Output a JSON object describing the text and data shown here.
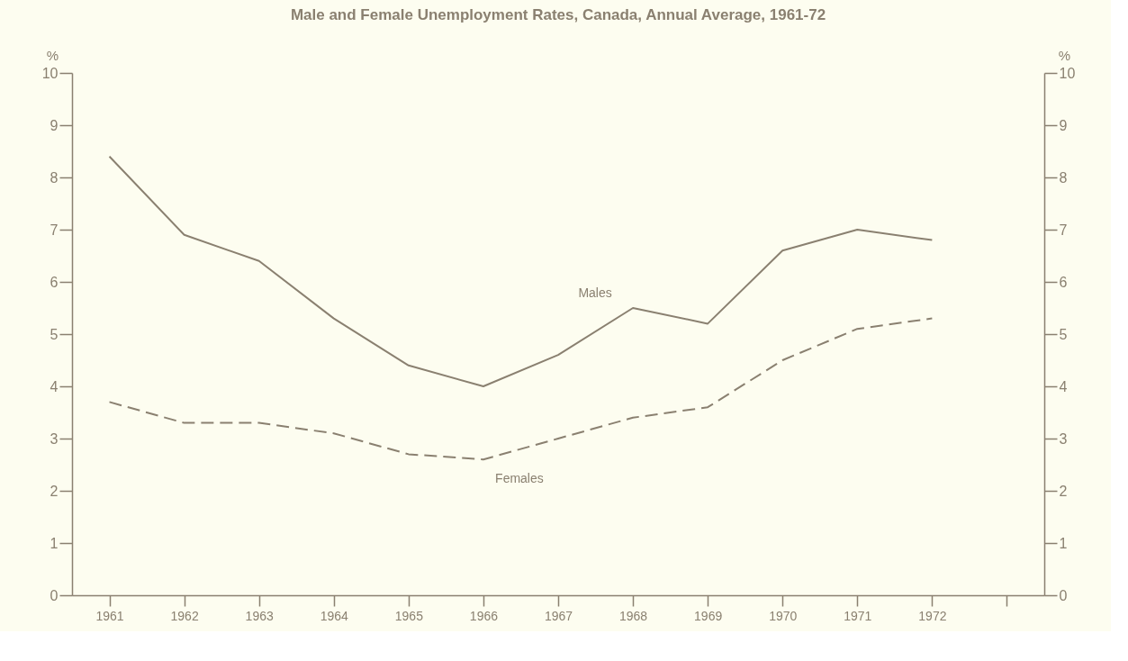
{
  "chart_data": {
    "type": "line",
    "title": "Male and Female Unemployment Rates, Canada, Annual Average, 1961-72",
    "x": [
      1961,
      1962,
      1963,
      1964,
      1965,
      1966,
      1967,
      1968,
      1969,
      1970,
      1971,
      1972
    ],
    "series": [
      {
        "name": "Males",
        "color": "#8a8070",
        "line_style": "solid",
        "values": [
          8.4,
          6.9,
          6.4,
          5.3,
          4.4,
          4.0,
          4.6,
          5.5,
          5.2,
          6.6,
          7.0,
          6.8
        ]
      },
      {
        "name": "Females",
        "color": "#8a8070",
        "line_style": "dashed",
        "values": [
          3.7,
          3.3,
          3.3,
          3.1,
          2.7,
          2.6,
          3.0,
          3.4,
          3.6,
          4.5,
          5.1,
          5.3
        ]
      }
    ],
    "ylabel": "%",
    "y2label": "%",
    "xlim": [
      1960.5,
      1973.5
    ],
    "xticks": [
      1961,
      1962,
      1963,
      1964,
      1965,
      1966,
      1967,
      1968,
      1969,
      1970,
      1971,
      1972,
      {
        "value": 1973,
        "label": null
      }
    ],
    "ylim": [
      0,
      10
    ],
    "yticks": [
      0,
      1,
      2,
      3,
      4,
      5,
      6,
      7,
      8,
      9,
      10
    ],
    "y2lim": [
      0,
      10
    ],
    "y2ticks": [
      0,
      1,
      2,
      3,
      4,
      5,
      6,
      7,
      8,
      9,
      10
    ],
    "grid": false,
    "marker": "none"
  }
}
